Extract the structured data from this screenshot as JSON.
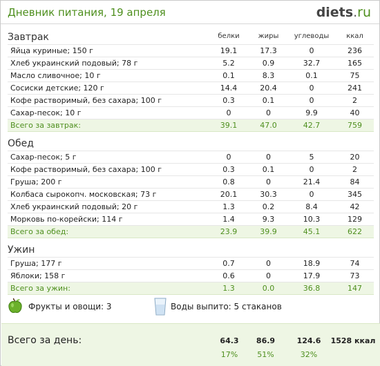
{
  "header": {
    "title": "Дневник питания, 19 апреля",
    "logo_main": "diets",
    "logo_dot": ".",
    "logo_tld": "ru"
  },
  "columns": {
    "protein": "белки",
    "fat": "жиры",
    "carbs": "углеводы",
    "kcal": "ккал"
  },
  "sections": [
    {
      "title": "Завтрак",
      "rows": [
        {
          "name": "Яйца куриные; 150 г",
          "p": "19.1",
          "f": "17.3",
          "c": "0",
          "k": "236"
        },
        {
          "name": "Хлеб украинский подовый; 78 г",
          "p": "5.2",
          "f": "0.9",
          "c": "32.7",
          "k": "165"
        },
        {
          "name": "Масло сливочное; 10 г",
          "p": "0.1",
          "f": "8.3",
          "c": "0.1",
          "k": "75"
        },
        {
          "name": "Сосиски детские; 120 г",
          "p": "14.4",
          "f": "20.4",
          "c": "0",
          "k": "241"
        },
        {
          "name": "Кофе растворимый, без сахара; 100 г",
          "p": "0.3",
          "f": "0.1",
          "c": "0",
          "k": "2"
        },
        {
          "name": "Сахар-песок; 10 г",
          "p": "0",
          "f": "0",
          "c": "9.9",
          "k": "40"
        }
      ],
      "total": {
        "name": "Всего за завтрак:",
        "p": "39.1",
        "f": "47.0",
        "c": "42.7",
        "k": "759"
      }
    },
    {
      "title": "Обед",
      "rows": [
        {
          "name": "Сахар-песок; 5 г",
          "p": "0",
          "f": "0",
          "c": "5",
          "k": "20"
        },
        {
          "name": "Кофе растворимый, без сахара; 100 г",
          "p": "0.3",
          "f": "0.1",
          "c": "0",
          "k": "2"
        },
        {
          "name": "Груша; 200 г",
          "p": "0.8",
          "f": "0",
          "c": "21.4",
          "k": "84"
        },
        {
          "name": "Колбаса сырокопч. московская; 73 г",
          "p": "20.1",
          "f": "30.3",
          "c": "0",
          "k": "345"
        },
        {
          "name": "Хлеб украинский подовый; 20 г",
          "p": "1.3",
          "f": "0.2",
          "c": "8.4",
          "k": "42"
        },
        {
          "name": "Морковь по-корейски; 114 г",
          "p": "1.4",
          "f": "9.3",
          "c": "10.3",
          "k": "129"
        }
      ],
      "total": {
        "name": "Всего за обед:",
        "p": "23.9",
        "f": "39.9",
        "c": "45.1",
        "k": "622"
      }
    },
    {
      "title": "Ужин",
      "rows": [
        {
          "name": "Груша; 177 г",
          "p": "0.7",
          "f": "0",
          "c": "18.9",
          "k": "74"
        },
        {
          "name": "Яблоки; 158 г",
          "p": "0.6",
          "f": "0",
          "c": "17.9",
          "k": "73"
        }
      ],
      "total": {
        "name": "Всего за ужин:",
        "p": "1.3",
        "f": "0.0",
        "c": "36.8",
        "k": "147"
      }
    }
  ],
  "extras": {
    "fruits": "Фрукты и овощи: 3",
    "water": "Воды выпито: 5 стаканов"
  },
  "day_total": {
    "label": "Всего за день:",
    "p": "64.3",
    "f": "86.9",
    "c": "124.6",
    "k": "1528 ккал",
    "p_pct": "17%",
    "f_pct": "51%",
    "c_pct": "32%"
  }
}
